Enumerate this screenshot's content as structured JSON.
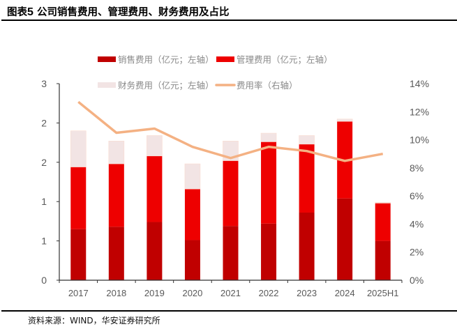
{
  "title": {
    "prefix": "图表",
    "number": "5",
    "text": "公司销售费用、管理费用、财务费用及占比"
  },
  "source": "资料来源：WIND，华安证券研究所",
  "chart_data": {
    "type": "bar",
    "stacked": true,
    "categories": [
      "2017",
      "2018",
      "2019",
      "2020",
      "2021",
      "2022",
      "2023",
      "2024",
      "2025H1"
    ],
    "series": [
      {
        "name": "销售费用（亿元；左轴）",
        "axis": "left",
        "type": "bar",
        "color": "#c00000",
        "values": [
          0.65,
          0.68,
          0.74,
          0.51,
          0.69,
          0.72,
          0.86,
          1.04,
          0.5
        ]
      },
      {
        "name": "管理费用（亿元；左轴）",
        "axis": "left",
        "type": "bar",
        "color": "#ee0000",
        "values": [
          0.79,
          0.8,
          0.84,
          0.65,
          0.83,
          1.04,
          0.87,
          0.98,
          0.48
        ]
      },
      {
        "name": "财务费用（亿元；左轴）",
        "axis": "left",
        "type": "bar",
        "color": "#f2e4e4",
        "values": [
          0.46,
          0.29,
          0.26,
          0.32,
          0.25,
          0.11,
          0.11,
          0.03,
          0.01
        ]
      },
      {
        "name": "费用率（右轴）",
        "axis": "right",
        "type": "line",
        "color": "#f4b183",
        "values": [
          12.7,
          10.5,
          10.8,
          9.5,
          8.7,
          9.5,
          9.2,
          8.5,
          9.0
        ]
      }
    ],
    "left_axis": {
      "ylim": [
        0,
        2.5
      ],
      "ticks": [
        0,
        0.5,
        1,
        1.5,
        2,
        2.5
      ],
      "tick_labels": [
        "0",
        "1",
        "1",
        "2",
        "2",
        "3"
      ]
    },
    "right_axis": {
      "ylim": [
        0,
        14
      ],
      "unit": "%",
      "ticks": [
        0,
        2,
        4,
        6,
        8,
        10,
        12,
        14
      ],
      "tick_labels": [
        "0%",
        "2%",
        "4%",
        "6%",
        "8%",
        "10%",
        "12%",
        "14%"
      ]
    },
    "legend_placement": "top",
    "grid": false
  }
}
